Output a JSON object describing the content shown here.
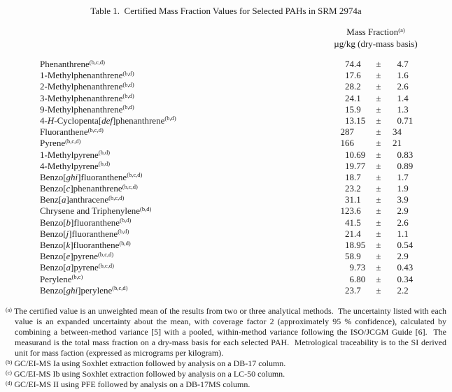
{
  "title": "Table 1.  Certified Mass Fraction Values for Selected PAHs in SRM 2974a",
  "header": {
    "col_title": "Mass Fraction",
    "col_title_sup": "(a)",
    "col_subtitle": "µg/kg (dry-mass basis)"
  },
  "table": {
    "pm_symbol": "±",
    "rows": [
      {
        "name": [
          {
            "t": "Phenanthrene"
          }
        ],
        "sup": "(b,c,d)",
        "value": "74.4",
        "uncertainty": "4.7"
      },
      {
        "name": [
          {
            "t": "1-Methylphenanthrene"
          }
        ],
        "sup": "(b,d)",
        "value": "17.6",
        "uncertainty": "1.6"
      },
      {
        "name": [
          {
            "t": "2-Methylphenanthrene"
          }
        ],
        "sup": "(b,d)",
        "value": "28.2",
        "uncertainty": "2.6"
      },
      {
        "name": [
          {
            "t": "3-Methylphenanthrene"
          }
        ],
        "sup": "(b,d)",
        "value": "24.1",
        "uncertainty": "1.4"
      },
      {
        "name": [
          {
            "t": "9-Methylphenanthrene"
          }
        ],
        "sup": "(b,d)",
        "value": "15.9",
        "uncertainty": "1.3"
      },
      {
        "name": [
          {
            "t": "4-"
          },
          {
            "t": "H",
            "i": true
          },
          {
            "t": "-Cyclopenta["
          },
          {
            "t": "def",
            "i": true
          },
          {
            "t": "]phenanthrene"
          }
        ],
        "sup": "(b,d)",
        "value": "13.15",
        "uncertainty": "0.71"
      },
      {
        "name": [
          {
            "t": "Fluoranthene"
          }
        ],
        "sup": "(b,c,d)",
        "value": "287",
        "uncertainty": "34"
      },
      {
        "name": [
          {
            "t": "Pyrene"
          }
        ],
        "sup": "(b,c,d)",
        "value": "166",
        "uncertainty": "21"
      },
      {
        "name": [
          {
            "t": "1-Methylpyrene"
          }
        ],
        "sup": "(b,d)",
        "value": "10.69",
        "uncertainty": "0.83"
      },
      {
        "name": [
          {
            "t": "4-Methylpyrene"
          }
        ],
        "sup": "(b,d)",
        "value": "19.77",
        "uncertainty": "0.89"
      },
      {
        "name": [
          {
            "t": "Benzo["
          },
          {
            "t": "ghi",
            "i": true
          },
          {
            "t": "]fluoranthene"
          }
        ],
        "sup": "(b,c,d)",
        "value": "18.7",
        "uncertainty": "1.7"
      },
      {
        "name": [
          {
            "t": "Benzo["
          },
          {
            "t": "c",
            "i": true
          },
          {
            "t": "]phenanthrene"
          }
        ],
        "sup": "(b,c,d)",
        "value": "23.2",
        "uncertainty": "1.9"
      },
      {
        "name": [
          {
            "t": "Benz["
          },
          {
            "t": "a",
            "i": true
          },
          {
            "t": "]anthracene"
          }
        ],
        "sup": "(b,c,d)",
        "value": "31.1",
        "uncertainty": "3.9"
      },
      {
        "name": [
          {
            "t": "Chrysene and Triphenylene"
          }
        ],
        "sup": "(b,d)",
        "value": "123.6",
        "uncertainty": "2.9"
      },
      {
        "name": [
          {
            "t": "Benzo["
          },
          {
            "t": "b",
            "i": true
          },
          {
            "t": "]fluoranthene"
          }
        ],
        "sup": "(b,d)",
        "value": "41.5",
        "uncertainty": "2.6"
      },
      {
        "name": [
          {
            "t": "Benzo["
          },
          {
            "t": "j",
            "i": true
          },
          {
            "t": "]fluoranthene"
          }
        ],
        "sup": "(b,d)",
        "value": "21.4",
        "uncertainty": "1.1"
      },
      {
        "name": [
          {
            "t": "Benzo["
          },
          {
            "t": "k",
            "i": true
          },
          {
            "t": "]fluoranthene"
          }
        ],
        "sup": "(b,d)",
        "value": "18.95",
        "uncertainty": "0.54"
      },
      {
        "name": [
          {
            "t": "Benzo["
          },
          {
            "t": "e",
            "i": true
          },
          {
            "t": "]pyrene"
          }
        ],
        "sup": "(b,c,d)",
        "value": "58.9",
        "uncertainty": "2.9"
      },
      {
        "name": [
          {
            "t": "Benzo["
          },
          {
            "t": "a",
            "i": true
          },
          {
            "t": "]pyrene"
          }
        ],
        "sup": "(b,c,d)",
        "value": "9.73",
        "uncertainty": "0.43"
      },
      {
        "name": [
          {
            "t": "Perylene"
          }
        ],
        "sup": "(b,c)",
        "value": "6.80",
        "uncertainty": "0.34"
      },
      {
        "name": [
          {
            "t": "Benzo["
          },
          {
            "t": "ghi",
            "i": true
          },
          {
            "t": "]perylene"
          }
        ],
        "sup": "(b,c,d)",
        "value": "23.7",
        "uncertainty": "2.2"
      }
    ]
  },
  "footnotes": [
    {
      "marker": "(a)",
      "justify": true,
      "text": "The certified value is an unweighted mean of the results from two or three analytical methods.  The uncertainty listed with each value is an expanded uncertainty about the mean, with coverage factor 2 (approximately 95 % confidence), calculated by combining a between-method variance [5] with a pooled, within-method variance following the ISO/JCGM Guide [6].  The measurand is the total mass fraction on a dry-mass basis for each selected PAH.  Metrological traceability is to the SI derived unit for mass faction (expressed as micrograms per kilogram)."
    },
    {
      "marker": "(b)",
      "justify": false,
      "text": "GC/EI-MS Ia using Soxhlet extraction followed by analysis on a DB-17 column."
    },
    {
      "marker": "(c)",
      "justify": false,
      "text": "GC/EI-MS Ib using Soxhlet extraction followed by analysis on a LC-50 column."
    },
    {
      "marker": "(d)",
      "justify": false,
      "text": "GC/EI-MS II using PFE followed by analysis on a DB-17MS column."
    }
  ],
  "colors": {
    "text": "#1f1f1f",
    "background": "#fdfdfd"
  }
}
